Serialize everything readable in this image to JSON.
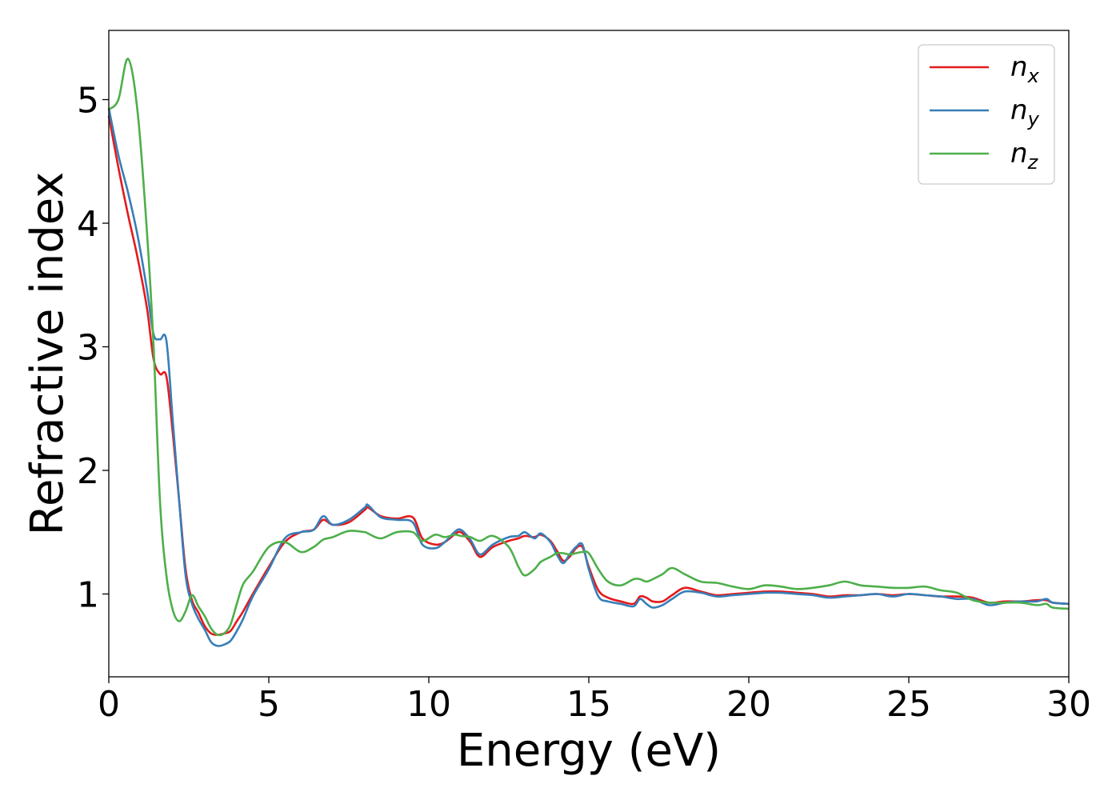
{
  "chart_data": {
    "type": "line",
    "xlabel": "Energy (eV)",
    "ylabel": "Refractive index",
    "xlim": [
      0,
      30
    ],
    "ylim": [
      0.33,
      5.56
    ],
    "x_ticks": [
      0,
      5,
      10,
      15,
      20,
      25,
      30
    ],
    "y_ticks": [
      1,
      2,
      3,
      4,
      5
    ],
    "grid": false,
    "legend_position": "top-right",
    "x": [
      0.0,
      0.3,
      0.6,
      0.9,
      1.2,
      1.4,
      1.6,
      1.8,
      2.0,
      2.2,
      2.4,
      2.6,
      2.8,
      3.0,
      3.2,
      3.4,
      3.6,
      3.8,
      4.0,
      4.2,
      4.5,
      5.0,
      5.5,
      6.0,
      6.4,
      6.7,
      7.0,
      7.5,
      8.0,
      8.1,
      8.5,
      9.0,
      9.5,
      9.8,
      10.2,
      10.5,
      10.8,
      11.0,
      11.3,
      11.6,
      12.0,
      12.5,
      12.8,
      13.0,
      13.3,
      13.5,
      13.8,
      14.0,
      14.2,
      14.4,
      14.6,
      14.8,
      15.0,
      15.3,
      15.6,
      16.0,
      16.4,
      16.6,
      16.8,
      17.0,
      17.3,
      17.6,
      18.0,
      18.5,
      19.0,
      19.5,
      20.0,
      20.5,
      21.0,
      21.5,
      22.0,
      22.5,
      23.0,
      23.5,
      24.0,
      24.5,
      25.0,
      25.5,
      26.0,
      26.5,
      27.0,
      27.5,
      28.0,
      28.5,
      29.0,
      29.3,
      29.5,
      30.0
    ],
    "series": [
      {
        "name": "n",
        "subscript": "x",
        "color": "#e41a1c",
        "values": [
          4.87,
          4.45,
          4.07,
          3.72,
          3.3,
          2.9,
          2.78,
          2.76,
          2.3,
          1.75,
          1.2,
          0.95,
          0.85,
          0.74,
          0.68,
          0.67,
          0.68,
          0.7,
          0.78,
          0.86,
          1.0,
          1.22,
          1.42,
          1.5,
          1.52,
          1.6,
          1.56,
          1.58,
          1.68,
          1.7,
          1.63,
          1.61,
          1.62,
          1.45,
          1.4,
          1.42,
          1.48,
          1.5,
          1.42,
          1.3,
          1.38,
          1.43,
          1.45,
          1.47,
          1.46,
          1.48,
          1.43,
          1.35,
          1.27,
          1.3,
          1.37,
          1.38,
          1.22,
          1.03,
          0.97,
          0.94,
          0.92,
          0.98,
          0.97,
          0.94,
          0.94,
          0.99,
          1.05,
          1.02,
          0.99,
          1.0,
          1.01,
          1.02,
          1.02,
          1.01,
          1.0,
          0.98,
          0.99,
          0.99,
          1.0,
          0.99,
          1.0,
          0.99,
          0.98,
          0.98,
          0.97,
          0.93,
          0.94,
          0.94,
          0.95,
          0.95,
          0.93,
          0.92
        ]
      },
      {
        "name": "n",
        "subscript": "y",
        "color": "#377eb8",
        "values": [
          4.93,
          4.55,
          4.25,
          3.9,
          3.45,
          3.1,
          3.06,
          3.05,
          2.4,
          1.75,
          1.15,
          0.92,
          0.8,
          0.71,
          0.61,
          0.58,
          0.59,
          0.62,
          0.7,
          0.8,
          0.98,
          1.2,
          1.45,
          1.5,
          1.52,
          1.63,
          1.56,
          1.6,
          1.7,
          1.72,
          1.62,
          1.6,
          1.58,
          1.4,
          1.37,
          1.42,
          1.5,
          1.52,
          1.44,
          1.32,
          1.4,
          1.46,
          1.47,
          1.5,
          1.45,
          1.49,
          1.42,
          1.32,
          1.25,
          1.32,
          1.38,
          1.4,
          1.2,
          0.98,
          0.94,
          0.92,
          0.9,
          0.96,
          0.92,
          0.89,
          0.91,
          0.96,
          1.02,
          1.01,
          0.98,
          0.99,
          1.0,
          1.01,
          1.01,
          1.0,
          0.99,
          0.97,
          0.98,
          0.99,
          1.0,
          0.98,
          1.0,
          0.99,
          0.98,
          0.96,
          0.96,
          0.91,
          0.93,
          0.94,
          0.94,
          0.96,
          0.93,
          0.92
        ]
      },
      {
        "name": "n",
        "subscript": "z",
        "color": "#4daf4a",
        "values": [
          4.92,
          5.0,
          5.33,
          4.9,
          3.9,
          3.0,
          1.75,
          1.15,
          0.87,
          0.78,
          0.86,
          0.99,
          0.9,
          0.82,
          0.72,
          0.67,
          0.68,
          0.75,
          0.92,
          1.08,
          1.18,
          1.38,
          1.42,
          1.34,
          1.38,
          1.44,
          1.46,
          1.51,
          1.5,
          1.49,
          1.45,
          1.5,
          1.5,
          1.43,
          1.48,
          1.46,
          1.48,
          1.47,
          1.46,
          1.43,
          1.47,
          1.38,
          1.22,
          1.15,
          1.2,
          1.26,
          1.3,
          1.33,
          1.33,
          1.32,
          1.33,
          1.34,
          1.33,
          1.2,
          1.1,
          1.07,
          1.12,
          1.12,
          1.1,
          1.12,
          1.16,
          1.21,
          1.16,
          1.1,
          1.09,
          1.06,
          1.04,
          1.07,
          1.06,
          1.04,
          1.05,
          1.07,
          1.1,
          1.07,
          1.06,
          1.05,
          1.05,
          1.06,
          1.03,
          1.01,
          0.95,
          0.93,
          0.93,
          0.93,
          0.91,
          0.92,
          0.89,
          0.88
        ]
      }
    ]
  }
}
